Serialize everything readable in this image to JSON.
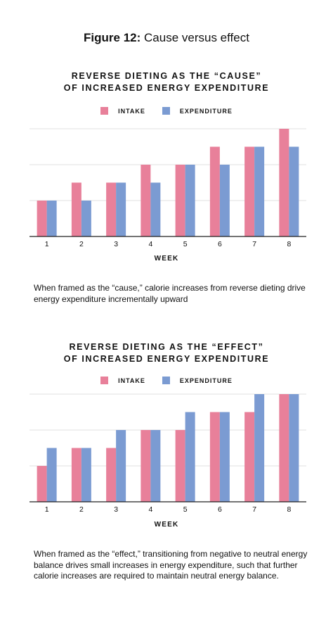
{
  "figure": {
    "label": "Figure 12:",
    "title": "Cause versus effect"
  },
  "colors": {
    "intake": "#E8809A",
    "expenditure": "#7B9BD2",
    "grid": "#e2e2e2",
    "axis": "#222222"
  },
  "legend": {
    "intake": "INTAKE",
    "expenditure": "EXPENDITURE"
  },
  "charts": [
    {
      "title_line1": "REVERSE DIETING AS THE “CAUSE”",
      "title_line2": "OF INCREASED ENERGY EXPENDITURE",
      "xlabel": "WEEK",
      "caption": "When framed as the “cause,” calorie increases from reverse dieting drive energy expenditure incrementally upward"
    },
    {
      "title_line1": "REVERSE DIETING AS THE “EFFECT”",
      "title_line2": "OF INCREASED ENERGY EXPENDITURE",
      "xlabel": "WEEK",
      "caption": "When framed as the “effect,” transitioning from negative to neutral energy balance drives small increases in energy expenditure, such that further calorie increases are required to maintain neutral energy balance."
    }
  ],
  "chart_data": [
    {
      "type": "bar",
      "title": "REVERSE DIETING AS THE “CAUSE” OF INCREASED ENERGY EXPENDITURE",
      "xlabel": "WEEK",
      "ylabel": "",
      "categories": [
        "1",
        "2",
        "3",
        "4",
        "5",
        "6",
        "7",
        "8"
      ],
      "series": [
        {
          "name": "INTAKE",
          "values": [
            2,
            3,
            3,
            4,
            4,
            5,
            5,
            6
          ]
        },
        {
          "name": "EXPENDITURE",
          "values": [
            2,
            2,
            3,
            3,
            4,
            4,
            5,
            5
          ]
        }
      ],
      "ylim": [
        0,
        6
      ],
      "grid": true,
      "legend": "top-center"
    },
    {
      "type": "bar",
      "title": "REVERSE DIETING AS THE “EFFECT” OF INCREASED ENERGY EXPENDITURE",
      "xlabel": "WEEK",
      "ylabel": "",
      "categories": [
        "1",
        "2",
        "3",
        "4",
        "5",
        "6",
        "7",
        "8"
      ],
      "series": [
        {
          "name": "INTAKE",
          "values": [
            2,
            3,
            3,
            4,
            4,
            5,
            5,
            6
          ]
        },
        {
          "name": "EXPENDITURE",
          "values": [
            3,
            3,
            4,
            4,
            5,
            5,
            6,
            6
          ]
        }
      ],
      "ylim": [
        0,
        6
      ],
      "grid": true,
      "legend": "top-center"
    }
  ]
}
